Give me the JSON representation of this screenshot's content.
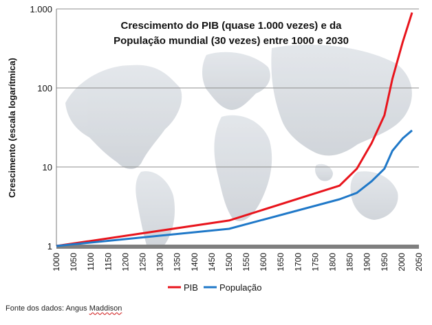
{
  "chart_data": {
    "type": "line",
    "title_line1": "Crescimento do PIB (quase 1.000 vezes) e da",
    "title_line2": "População mundial (30 vezes) entre 1000 e 2030",
    "ylabel": "Crescimento (escala logarítmica)",
    "xlabel": "",
    "y_scale": "log",
    "ylim": [
      1,
      1000
    ],
    "y_ticks": [
      1,
      10,
      100,
      1000
    ],
    "y_tick_labels": [
      "1",
      "10",
      "100",
      "1.000"
    ],
    "xlim": [
      1000,
      2050
    ],
    "x_ticks": [
      1000,
      1050,
      1100,
      1150,
      1200,
      1250,
      1300,
      1350,
      1400,
      1450,
      1500,
      1550,
      1600,
      1650,
      1700,
      1750,
      1800,
      1850,
      1900,
      1950,
      2000,
      2050
    ],
    "grid": "horizontal",
    "legend_position": "bottom",
    "series": [
      {
        "name": "PIB",
        "color": "#e8141c",
        "x": [
          1000,
          1500,
          1820,
          1870,
          1913,
          1950,
          1973,
          2003,
          2030
        ],
        "values": [
          1,
          2.1,
          5.8,
          9.5,
          20,
          45,
          130,
          380,
          900
        ]
      },
      {
        "name": "População",
        "color": "#1f78c8",
        "x": [
          1000,
          1500,
          1820,
          1870,
          1913,
          1950,
          1973,
          2003,
          2030
        ],
        "values": [
          1,
          1.65,
          3.9,
          4.7,
          6.6,
          9.5,
          16,
          23,
          29
        ]
      }
    ]
  },
  "source": {
    "prefix": "Fonte dos dados: Angus ",
    "name": "Maddison"
  }
}
